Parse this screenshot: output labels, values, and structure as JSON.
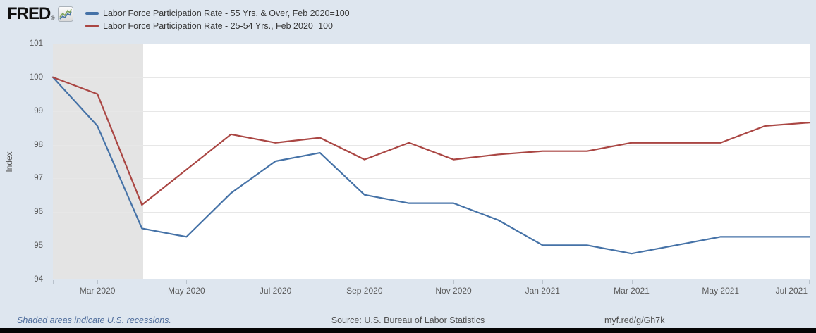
{
  "header": {
    "logo_text": "FRED",
    "registered_mark": "®"
  },
  "chart_data": {
    "type": "line",
    "title": "",
    "ylabel": "Index",
    "xlabel": "",
    "ylim": [
      94,
      101
    ],
    "yticks": [
      94,
      95,
      96,
      97,
      98,
      99,
      100,
      101
    ],
    "grid": "horizontal",
    "legend_position": "top-left",
    "months": [
      "Feb 2020",
      "Mar 2020",
      "Apr 2020",
      "May 2020",
      "Jun 2020",
      "Jul 2020",
      "Aug 2020",
      "Sep 2020",
      "Oct 2020",
      "Nov 2020",
      "Dec 2020",
      "Jan 2021",
      "Feb 2021",
      "Mar 2021",
      "Apr 2021",
      "May 2021",
      "Jun 2021",
      "Jul 2021"
    ],
    "xtick_labels": [
      "Mar 2020",
      "May 2020",
      "Jul 2020",
      "Sep 2020",
      "Nov 2020",
      "Jan 2021",
      "Mar 2021",
      "May 2021",
      "Jul 2021"
    ],
    "series": [
      {
        "name": "Labor Force Participation Rate - 55 Yrs. & Over, Feb 2020=100",
        "color": "#4572a7",
        "values": [
          100,
          98.55,
          95.5,
          95.25,
          96.55,
          97.5,
          97.75,
          96.5,
          96.25,
          96.25,
          95.75,
          95,
          95,
          94.75,
          95,
          95.25,
          95.25,
          95.25
        ]
      },
      {
        "name": "Labor Force Participation Rate - 25-54 Yrs., Feb 2020=100",
        "color": "#aa4643",
        "values": [
          100,
          99.5,
          96.2,
          97.25,
          98.3,
          98.05,
          98.2,
          97.55,
          98.05,
          97.55,
          97.7,
          97.8,
          97.8,
          98.05,
          98.05,
          98.05,
          98.55,
          98.65
        ]
      }
    ],
    "recession_band": {
      "start": "Feb 2020",
      "end": "Apr 2020",
      "color": "#e4e4e4"
    }
  },
  "footer": {
    "recession_note": "Shaded areas indicate U.S. recessions.",
    "source": "Source: U.S. Bureau of Labor Statistics",
    "permalink": "myf.red/g/Gh7k"
  }
}
